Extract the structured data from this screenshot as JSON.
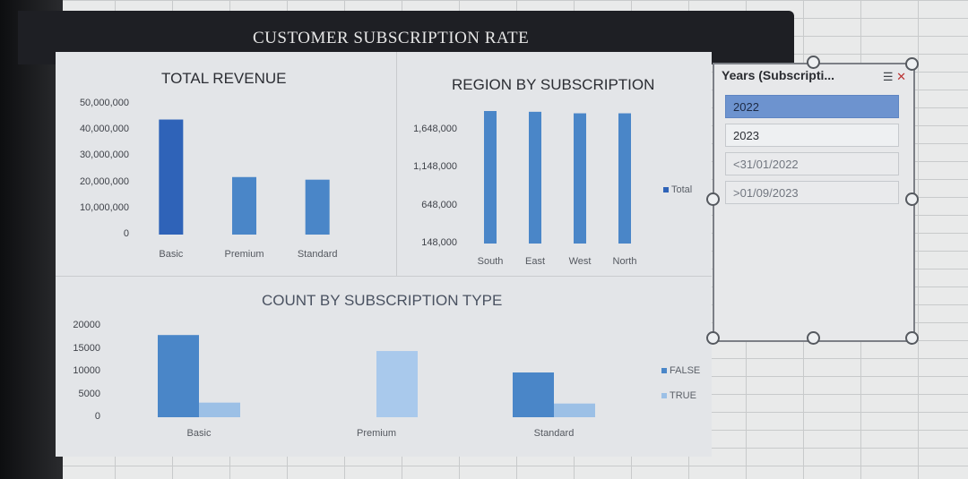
{
  "dashboard": {
    "title": "CUSTOMER SUBSCRIPTION RATE"
  },
  "slicer": {
    "header": "Years (Subscripti...",
    "items": [
      {
        "label": "2022",
        "selected": true
      },
      {
        "label": "2023",
        "selected": false
      },
      {
        "label": "<31/01/2022",
        "selected": false
      },
      {
        "label": ">01/09/2023",
        "selected": false
      }
    ],
    "icons": [
      "multi-select-icon",
      "clear-filter-icon"
    ]
  },
  "colors": {
    "bar_dark": "#2f63b8",
    "bar_mid": "#4a86c8",
    "bar_light": "#9cc0e6",
    "bar_lighter": "#a9c9ec"
  },
  "chart_data": [
    {
      "type": "bar",
      "title": "TOTAL REVENUE",
      "categories": [
        "Basic",
        "Premium",
        "Standard"
      ],
      "values": [
        44000000,
        22000000,
        21000000
      ],
      "ylim": [
        0,
        50000000
      ],
      "yticks": [
        0,
        10000000,
        20000000,
        30000000,
        40000000,
        50000000
      ],
      "ytick_labels": [
        "0",
        "10,000,000",
        "20,000,000",
        "30,000,000",
        "40,000,000",
        "50,000,000"
      ],
      "grid": false
    },
    {
      "type": "bar",
      "title": "REGION BY SUBSCRIPTION",
      "categories": [
        "South",
        "East",
        "West",
        "North"
      ],
      "series": [
        {
          "name": "Total",
          "values": [
            1890000,
            1880000,
            1860000,
            1860000
          ]
        }
      ],
      "ylim": [
        148000,
        1890000
      ],
      "yticks": [
        148000,
        648000,
        1148000,
        1648000
      ],
      "ytick_labels": [
        "148,000",
        "648,000",
        "1,148,000",
        "1,648,000"
      ],
      "legend": "right",
      "grid": false
    },
    {
      "type": "bar",
      "title": "COUNT BY SUBSCRIPTION TYPE",
      "categories": [
        "Basic",
        "Premium",
        "Standard"
      ],
      "series": [
        {
          "name": "FALSE",
          "values": [
            18000,
            0,
            9800
          ]
        },
        {
          "name": "TRUE",
          "values": [
            3200,
            14500,
            3000
          ]
        }
      ],
      "ylim": [
        0,
        20000
      ],
      "yticks": [
        0,
        5000,
        10000,
        15000,
        20000
      ],
      "ytick_labels": [
        "0",
        "5000",
        "10000",
        "15000",
        "20000"
      ],
      "legend": "right",
      "grid": false
    }
  ]
}
